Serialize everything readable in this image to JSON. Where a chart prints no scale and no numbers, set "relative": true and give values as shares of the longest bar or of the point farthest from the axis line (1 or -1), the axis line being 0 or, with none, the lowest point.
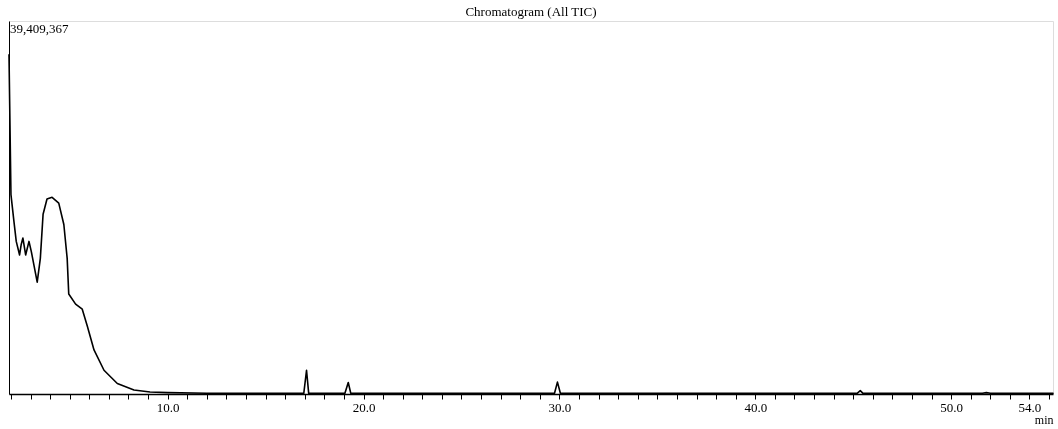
{
  "chart_data": {
    "type": "line",
    "title": "Chromatogram (All TIC)",
    "xlabel": "min",
    "relative": true,
    "annotations": [
      "39,409,367"
    ],
    "xlim": [
      1.9,
      55.2
    ],
    "xticks": [
      {
        "value": 2,
        "label": null
      },
      {
        "value": 3,
        "label": null
      },
      {
        "value": 4,
        "label": null
      },
      {
        "value": 5,
        "label": null
      },
      {
        "value": 6,
        "label": null
      },
      {
        "value": 7,
        "label": null
      },
      {
        "value": 8,
        "label": null
      },
      {
        "value": 9,
        "label": null
      },
      {
        "value": 10,
        "label": "10.0"
      },
      {
        "value": 11,
        "label": null
      },
      {
        "value": 12,
        "label": null
      },
      {
        "value": 13,
        "label": null
      },
      {
        "value": 14,
        "label": null
      },
      {
        "value": 15,
        "label": null
      },
      {
        "value": 16,
        "label": null
      },
      {
        "value": 17,
        "label": null
      },
      {
        "value": 18,
        "label": null
      },
      {
        "value": 19,
        "label": null
      },
      {
        "value": 20,
        "label": "20.0"
      },
      {
        "value": 21,
        "label": null
      },
      {
        "value": 22,
        "label": null
      },
      {
        "value": 23,
        "label": null
      },
      {
        "value": 24,
        "label": null
      },
      {
        "value": 25,
        "label": null
      },
      {
        "value": 26,
        "label": null
      },
      {
        "value": 27,
        "label": null
      },
      {
        "value": 28,
        "label": null
      },
      {
        "value": 29,
        "label": null
      },
      {
        "value": 30,
        "label": "30.0"
      },
      {
        "value": 31,
        "label": null
      },
      {
        "value": 32,
        "label": null
      },
      {
        "value": 33,
        "label": null
      },
      {
        "value": 34,
        "label": null
      },
      {
        "value": 35,
        "label": null
      },
      {
        "value": 36,
        "label": null
      },
      {
        "value": 37,
        "label": null
      },
      {
        "value": 38,
        "label": null
      },
      {
        "value": 39,
        "label": null
      },
      {
        "value": 40,
        "label": "40.0"
      },
      {
        "value": 41,
        "label": null
      },
      {
        "value": 42,
        "label": null
      },
      {
        "value": 43,
        "label": null
      },
      {
        "value": 44,
        "label": null
      },
      {
        "value": 45,
        "label": null
      },
      {
        "value": 46,
        "label": null
      },
      {
        "value": 47,
        "label": null
      },
      {
        "value": 48,
        "label": null
      },
      {
        "value": 49,
        "label": null
      },
      {
        "value": 50,
        "label": "50.0"
      },
      {
        "value": 51,
        "label": null
      },
      {
        "value": 52,
        "label": null
      },
      {
        "value": 53,
        "label": null
      },
      {
        "value": 54,
        "label": "54.0"
      },
      {
        "value": 55,
        "label": null
      }
    ],
    "grid": false,
    "marker": "none",
    "line_style": "solid",
    "series": [
      {
        "color": "#000000",
        "x": [
          1.9,
          2.0,
          2.15,
          2.27,
          2.44,
          2.52,
          2.61,
          2.75,
          2.92,
          3.04,
          3.34,
          3.5,
          3.64,
          3.84,
          4.1,
          4.44,
          4.7,
          4.87,
          4.95,
          5.3,
          5.64,
          5.9,
          6.24,
          6.75,
          7.43,
          8.28,
          9.1,
          10.0,
          12.0,
          16.0,
          16.95,
          17.09,
          17.2,
          19.05,
          19.22,
          19.35,
          29.75,
          29.9,
          30.05,
          45.2,
          45.36,
          45.5,
          51.6,
          51.8,
          52.0,
          55.2
        ],
        "values": [
          1.0,
          0.588,
          0.51,
          0.45,
          0.41,
          0.44,
          0.46,
          0.41,
          0.45,
          0.42,
          0.33,
          0.4,
          0.53,
          0.575,
          0.58,
          0.563,
          0.5,
          0.4,
          0.295,
          0.265,
          0.25,
          0.2,
          0.13,
          0.07,
          0.031,
          0.012,
          0.006,
          0.004,
          0.002,
          0.002,
          0.002,
          0.07,
          0.002,
          0.002,
          0.034,
          0.002,
          0.002,
          0.035,
          0.002,
          0.002,
          0.01,
          0.002,
          0.002,
          0.004,
          0.002,
          0.002
        ]
      }
    ]
  }
}
